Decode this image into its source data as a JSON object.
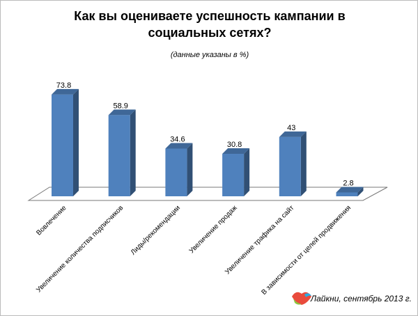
{
  "chart_data": {
    "type": "bar",
    "title": "Как вы оцениваете успешность кампании в социальных сетях?",
    "subtitle": "(данные указаны в %)",
    "categories": [
      "Вовлечение",
      "Увеличение количества подписчиков",
      "Лиды/рекомендации",
      "Увеличение продаж",
      "Увеличение трафика на сайт",
      "В зависимости от целей продвижения"
    ],
    "values": [
      73.8,
      58.9,
      34.6,
      30.8,
      43,
      2.8
    ],
    "color": "#4f81bd",
    "footer": "Лайкни, сентябрь 2013 г."
  }
}
